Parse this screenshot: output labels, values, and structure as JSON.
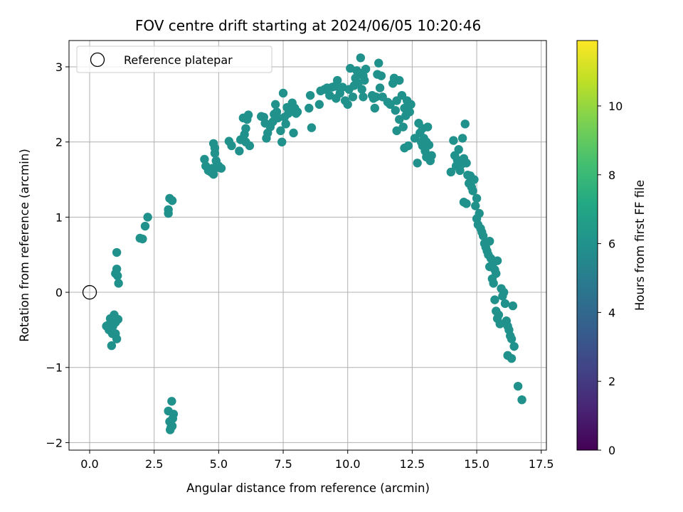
{
  "chart_data": {
    "type": "scatter",
    "title": "FOV centre drift starting at 2024/06/05 10:20:46",
    "xlabel": "Angular distance from reference (arcmin)",
    "ylabel": "Rotation from reference (arcmin)",
    "xlim": [
      -0.8,
      17.7
    ],
    "ylim": [
      -2.1,
      3.35
    ],
    "x_ticks": [
      0.0,
      2.5,
      5.0,
      7.5,
      10.0,
      12.5,
      15.0,
      17.5
    ],
    "x_tick_labels": [
      "0.0",
      "2.5",
      "5.0",
      "7.5",
      "10.0",
      "12.5",
      "15.0",
      "17.5"
    ],
    "y_ticks": [
      -2,
      -1,
      0,
      1,
      2,
      3
    ],
    "y_tick_labels": [
      "−2",
      "−1",
      "0",
      "1",
      "2",
      "3"
    ],
    "grid": true,
    "legend": {
      "placement": "top-left",
      "entries": [
        {
          "label": "Reference platepar",
          "marker": "open-circle"
        }
      ]
    },
    "reference_point": {
      "x": 0.0,
      "y": 0.0
    },
    "colorbar": {
      "label": "Hours from first FF file",
      "colormap": "viridis",
      "range": [
        0,
        11.9
      ],
      "ticks": [
        0,
        2,
        4,
        6,
        8,
        10
      ],
      "tick_labels": [
        "0",
        "2",
        "4",
        "6",
        "8",
        "10"
      ]
    },
    "series": [
      {
        "columns": [
          "x",
          "y",
          "hours"
        ],
        "points": [
          [
            3.15,
            -1.8
          ],
          [
            3.2,
            -1.78
          ],
          [
            3.1,
            -1.72
          ],
          [
            3.25,
            -1.62
          ],
          [
            3.05,
            -1.58
          ],
          [
            3.18,
            -1.45
          ],
          [
            3.12,
            -1.83
          ],
          [
            3.22,
            -1.68
          ],
          [
            0.85,
            -0.71
          ],
          [
            0.7,
            -0.44
          ],
          [
            0.75,
            -0.5
          ],
          [
            0.8,
            -0.35
          ],
          [
            0.9,
            -0.45
          ],
          [
            1.0,
            -0.4
          ],
          [
            1.05,
            -0.62
          ],
          [
            1.1,
            -0.36
          ],
          [
            0.95,
            -0.3
          ],
          [
            0.88,
            -0.55
          ],
          [
            0.65,
            -0.45
          ],
          [
            1.0,
            -0.55
          ],
          [
            0.92,
            -0.38
          ],
          [
            1.05,
            0.53
          ],
          [
            1.05,
            0.31
          ],
          [
            1.08,
            0.22
          ],
          [
            1.12,
            0.12
          ],
          [
            1.0,
            0.25
          ],
          [
            1.95,
            0.72
          ],
          [
            2.05,
            0.71
          ],
          [
            2.15,
            0.88
          ],
          [
            2.25,
            1.0
          ],
          [
            3.05,
            1.05
          ],
          [
            3.1,
            1.25
          ],
          [
            3.2,
            1.22
          ],
          [
            3.05,
            1.1
          ],
          [
            4.45,
            1.77
          ],
          [
            4.5,
            1.68
          ],
          [
            4.6,
            1.62
          ],
          [
            4.75,
            1.65
          ],
          [
            4.8,
            1.57
          ],
          [
            4.85,
            1.85
          ],
          [
            4.8,
            1.98
          ],
          [
            4.9,
            1.75
          ],
          [
            5.0,
            1.68
          ],
          [
            5.1,
            1.65
          ],
          [
            4.7,
            1.6
          ],
          [
            4.85,
            1.92
          ],
          [
            4.95,
            1.66
          ],
          [
            5.4,
            2.01
          ],
          [
            5.5,
            1.95
          ],
          [
            5.8,
            1.88
          ],
          [
            5.85,
            2.03
          ],
          [
            6.0,
            2.1
          ],
          [
            6.05,
            2.18
          ],
          [
            6.1,
            2.3
          ],
          [
            6.15,
            2.36
          ],
          [
            6.2,
            1.95
          ],
          [
            5.95,
            2.32
          ],
          [
            6.05,
            2.0
          ],
          [
            6.65,
            2.34
          ],
          [
            6.75,
            2.33
          ],
          [
            6.8,
            2.25
          ],
          [
            6.85,
            2.05
          ],
          [
            6.9,
            2.12
          ],
          [
            7.0,
            2.2
          ],
          [
            7.1,
            2.27
          ],
          [
            7.15,
            2.37
          ],
          [
            7.2,
            2.5
          ],
          [
            7.25,
            2.4
          ],
          [
            7.3,
            2.32
          ],
          [
            7.4,
            2.15
          ],
          [
            7.45,
            2.0
          ],
          [
            7.5,
            2.65
          ],
          [
            7.55,
            2.33
          ],
          [
            7.6,
            2.24
          ],
          [
            7.65,
            2.46
          ],
          [
            7.7,
            2.38
          ],
          [
            7.85,
            2.52
          ],
          [
            7.95,
            2.45
          ],
          [
            8.05,
            2.4
          ],
          [
            7.9,
            2.12
          ],
          [
            8.0,
            2.38
          ],
          [
            8.5,
            2.45
          ],
          [
            8.55,
            2.62
          ],
          [
            8.6,
            2.19
          ],
          [
            8.9,
            2.5
          ],
          [
            8.95,
            2.68
          ],
          [
            9.1,
            2.7
          ],
          [
            9.2,
            2.72
          ],
          [
            9.3,
            2.62
          ],
          [
            9.4,
            2.73
          ],
          [
            9.5,
            2.74
          ],
          [
            9.55,
            2.58
          ],
          [
            9.6,
            2.82
          ],
          [
            9.7,
            2.65
          ],
          [
            9.8,
            2.73
          ],
          [
            9.9,
            2.55
          ],
          [
            10.0,
            2.5
          ],
          [
            10.05,
            2.7
          ],
          [
            10.1,
            2.98
          ],
          [
            10.2,
            2.6
          ],
          [
            10.25,
            2.75
          ],
          [
            10.3,
            2.85
          ],
          [
            10.35,
            2.95
          ],
          [
            10.4,
            2.78
          ],
          [
            10.45,
            2.92
          ],
          [
            10.5,
            3.12
          ],
          [
            10.55,
            2.7
          ],
          [
            10.6,
            2.88
          ],
          [
            10.65,
            2.82
          ],
          [
            10.7,
            2.97
          ],
          [
            10.6,
            2.6
          ],
          [
            10.95,
            2.62
          ],
          [
            11.0,
            2.58
          ],
          [
            11.05,
            2.45
          ],
          [
            11.1,
            2.6
          ],
          [
            11.15,
            2.9
          ],
          [
            11.2,
            3.05
          ],
          [
            11.25,
            2.72
          ],
          [
            11.3,
            2.88
          ],
          [
            11.35,
            2.6
          ],
          [
            11.55,
            2.53
          ],
          [
            11.65,
            2.5
          ],
          [
            11.75,
            2.78
          ],
          [
            11.8,
            2.85
          ],
          [
            11.85,
            2.42
          ],
          [
            11.9,
            2.55
          ],
          [
            12.0,
            2.82
          ],
          [
            12.1,
            2.62
          ],
          [
            12.15,
            2.2
          ],
          [
            12.2,
            2.45
          ],
          [
            12.25,
            2.35
          ],
          [
            12.3,
            2.55
          ],
          [
            11.9,
            2.15
          ],
          [
            12.0,
            2.3
          ],
          [
            12.4,
            2.4
          ],
          [
            12.45,
            2.5
          ],
          [
            12.2,
            1.92
          ],
          [
            12.35,
            1.95
          ],
          [
            12.6,
            2.05
          ],
          [
            12.7,
            1.72
          ],
          [
            12.75,
            2.25
          ],
          [
            12.8,
            2.12
          ],
          [
            12.85,
            2.0
          ],
          [
            12.9,
            2.18
          ],
          [
            12.95,
            2.05
          ],
          [
            13.0,
            1.88
          ],
          [
            13.05,
            2.0
          ],
          [
            13.1,
            2.2
          ],
          [
            13.15,
            1.96
          ],
          [
            13.2,
            1.75
          ],
          [
            13.25,
            1.82
          ],
          [
            12.9,
            1.95
          ],
          [
            13.05,
            1.8
          ],
          [
            14.0,
            1.6
          ],
          [
            14.1,
            2.02
          ],
          [
            14.15,
            1.82
          ],
          [
            14.2,
            1.68
          ],
          [
            14.25,
            1.76
          ],
          [
            14.3,
            1.9
          ],
          [
            14.35,
            1.62
          ],
          [
            14.4,
            1.7
          ],
          [
            14.45,
            2.05
          ],
          [
            14.5,
            1.78
          ],
          [
            14.55,
            2.24
          ],
          [
            14.6,
            1.72
          ],
          [
            14.65,
            1.56
          ],
          [
            14.7,
            1.45
          ],
          [
            14.75,
            1.55
          ],
          [
            14.8,
            1.4
          ],
          [
            14.85,
            1.35
          ],
          [
            14.9,
            1.5
          ],
          [
            14.5,
            1.2
          ],
          [
            14.6,
            1.18
          ],
          [
            14.95,
            1.15
          ],
          [
            15.0,
            1.25
          ],
          [
            15.0,
            0.98
          ],
          [
            15.05,
            0.9
          ],
          [
            15.1,
            1.05
          ],
          [
            15.15,
            0.85
          ],
          [
            15.2,
            0.8
          ],
          [
            15.25,
            0.75
          ],
          [
            15.3,
            0.65
          ],
          [
            15.35,
            0.6
          ],
          [
            15.4,
            0.55
          ],
          [
            15.45,
            0.5
          ],
          [
            15.5,
            0.68
          ],
          [
            15.55,
            0.45
          ],
          [
            15.6,
            0.35
          ],
          [
            15.65,
            0.4
          ],
          [
            15.7,
            0.3
          ],
          [
            15.75,
            0.25
          ],
          [
            15.8,
            0.42
          ],
          [
            15.5,
            0.34
          ],
          [
            15.6,
            0.18
          ],
          [
            15.65,
            0.12
          ],
          [
            15.7,
            -0.1
          ],
          [
            15.75,
            -0.25
          ],
          [
            15.8,
            -0.35
          ],
          [
            15.85,
            -0.3
          ],
          [
            15.9,
            -0.42
          ],
          [
            15.95,
            0.05
          ],
          [
            16.0,
            -0.05
          ],
          [
            16.05,
            0.0
          ],
          [
            16.1,
            -0.15
          ],
          [
            16.15,
            -0.38
          ],
          [
            16.2,
            -0.45
          ],
          [
            16.25,
            -0.5
          ],
          [
            16.3,
            -0.58
          ],
          [
            16.35,
            -0.62
          ],
          [
            16.4,
            -0.18
          ],
          [
            16.45,
            -0.72
          ],
          [
            16.2,
            -0.84
          ],
          [
            16.35,
            -0.88
          ],
          [
            16.6,
            -1.25
          ],
          [
            16.75,
            -1.43
          ]
        ]
      }
    ]
  }
}
